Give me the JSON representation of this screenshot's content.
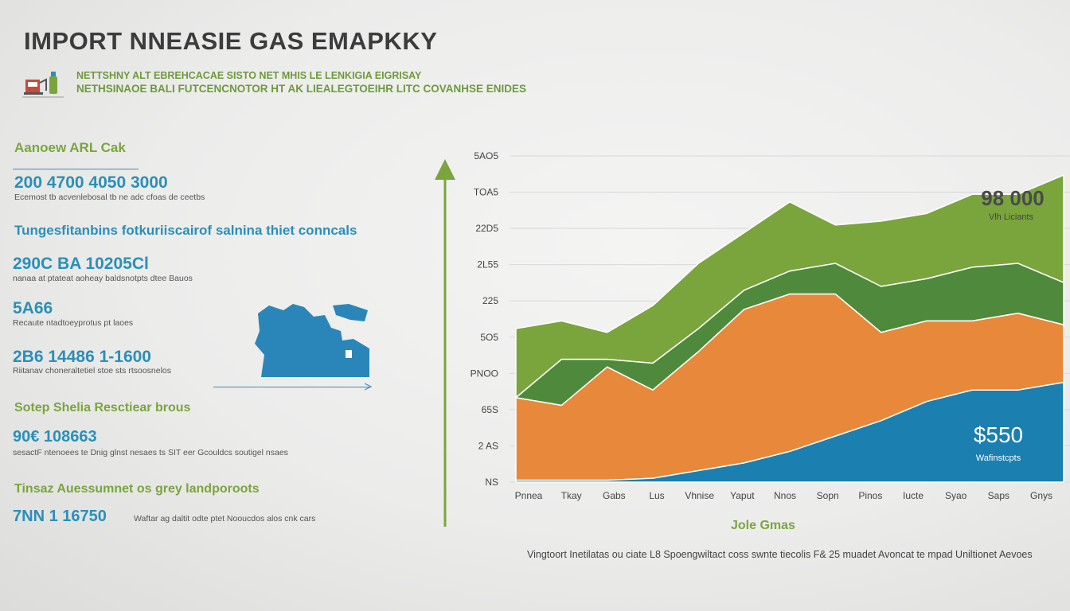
{
  "header": {
    "title": "IMPORT NNEASIE GAS EMAPKKY",
    "subtitle_line1": "NETTSHNY ALT EBREHCACAE SISTO NET MHIS LE LENKIGIA EIGRISAY",
    "subtitle_line2": "NETHSINAOE BALI FUTCENCNOTOR HT AK LIEALEGTOEIHR LITC COVANHSE ENIDES"
  },
  "left_panel": {
    "section1_title": "Aanoew ARL Cak",
    "kpi1_value": "200 4700 4050 3000",
    "kpi1_desc": "Ecemost tb acvenlebosal tb ne adc cfoas de ceetbs",
    "section2_title": "Tungesfitanbins fotkuriiscairof salnina thiet conncals",
    "kpi2_value": "290C BA 10205Cl",
    "kpi2_desc": "nanaa at ptateat aoheay baldsnotpts dtee Bauos",
    "kpi3_value": "5A66",
    "kpi3_desc": "Recaute ntadtoeyprotus pt laoes",
    "kpi4_value": "2B6 14486 1-1600",
    "kpi4_desc": "Riitanav choneraltetiel stoe sts rtsoosnelos",
    "section3_title": "Sotep Shelia Resctiear brous",
    "kpi5_value": "90€ 108663",
    "kpi5_desc": "sesactF ntenoees te Dnig glnst nesaes ts SIT eer Gcouldcs soutigel nsaes",
    "section4_title": "Tinsaz Auessumnet os grey landporoots",
    "kpi6_value": "7NN 1 16750",
    "kpi6_desc": "Waftar ag daltit odte ptet Nooucdos alos cnk cars"
  },
  "colors": {
    "green": "#7aa53d",
    "dark_green": "#4f8a3c",
    "orange": "#e8883a",
    "blue": "#1b7fb0",
    "map_blue": "#2a86b8"
  },
  "chart_data": {
    "type": "area",
    "stacked": true,
    "title": "",
    "xlabel": "Jole Gmas",
    "ylabel": "",
    "x": [
      "Pnnea",
      "Tkay",
      "Gabs",
      "Lus",
      "Vhnise",
      "Yaput",
      "Nnos",
      "Sopn",
      "Pinos",
      "Iucte",
      "Syao",
      "Saps",
      "Gnys"
    ],
    "y_ticks": [
      "5AO5",
      "TOA5",
      "22D5",
      "2L55",
      "225",
      "5O5",
      "PNOO",
      "65S",
      "2 AS",
      "NS"
    ],
    "series": [
      {
        "name": "",
        "color": "#1b7fb0",
        "top": [
          0.5,
          0.5,
          0.5,
          1,
          3,
          5,
          8,
          12,
          16,
          21,
          24,
          24,
          26
        ]
      },
      {
        "name": "",
        "color": "#e8883a",
        "top": [
          22,
          20,
          30,
          24,
          34,
          45,
          49,
          49,
          39,
          42,
          42,
          44,
          41
        ]
      },
      {
        "name": "",
        "color": "#4f8a3c",
        "top": [
          22,
          32,
          32,
          31,
          40,
          50,
          55,
          57,
          51,
          53,
          56,
          57,
          52
        ]
      },
      {
        "name": "",
        "color": "#7aa53d",
        "top": [
          40,
          42,
          39,
          46,
          57,
          65,
          73,
          67,
          68,
          70,
          75,
          75,
          80
        ]
      }
    ],
    "ylim": [
      0,
      85
    ],
    "grid": true,
    "annotations": [
      {
        "value": "98 000",
        "label": "Vlh Liciants"
      },
      {
        "value": "$550",
        "label": "Wafinstcpts"
      }
    ]
  },
  "footnote": "Vingtoort Inetilatas ou ciate L8 Spoengwiltact coss swnte tiecolis F& 25 muadet Avoncat te mpad Uniltionet Aevoes"
}
